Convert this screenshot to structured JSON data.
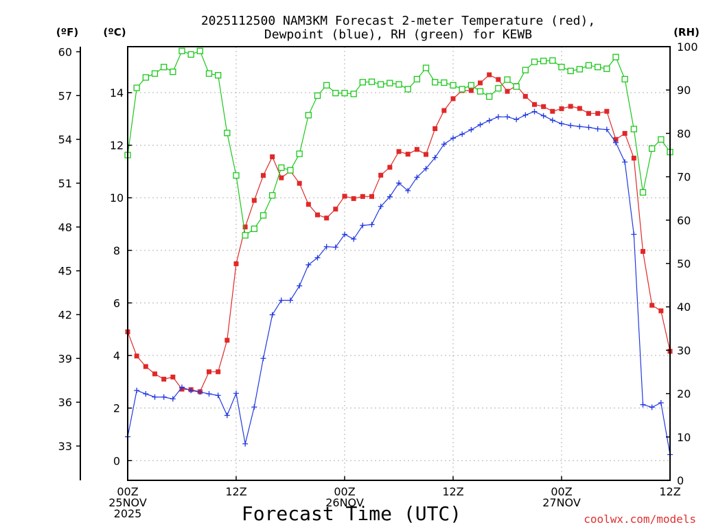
{
  "chart_data": {
    "type": "line",
    "title": [
      "2025112500 NAM3KM Forecast 2-meter Temperature (red),",
      "Dewpoint (blue), RH (green) for KEWB"
    ],
    "xlabel": "Forecast Time (UTC)",
    "credit": "coolwx.com/models",
    "units": {
      "fahrenheit": "(ºF)",
      "celsius": "(ºC)",
      "rh": "(RH)"
    },
    "x_hours_range": [
      0,
      60
    ],
    "celsius_range": [
      -0.75,
      15.75
    ],
    "rh_range": [
      0,
      100
    ],
    "x_ticks": [
      {
        "hour": 0,
        "lines": [
          "00Z",
          "25NOV",
          "2025"
        ]
      },
      {
        "hour": 12,
        "lines": [
          "12Z"
        ]
      },
      {
        "hour": 24,
        "lines": [
          "00Z",
          "26NOV"
        ]
      },
      {
        "hour": 36,
        "lines": [
          "12Z"
        ]
      },
      {
        "hour": 48,
        "lines": [
          "00Z",
          "27NOV"
        ]
      },
      {
        "hour": 60,
        "lines": [
          "12Z"
        ]
      }
    ],
    "celsius_ticks": [
      "0",
      "2",
      "4",
      "6",
      "8",
      "10",
      "12",
      "14"
    ],
    "fahrenheit_ticks": [
      "33",
      "36",
      "39",
      "42",
      "45",
      "48",
      "51",
      "54",
      "57",
      "60"
    ],
    "rh_ticks": [
      "0",
      "10",
      "20",
      "30",
      "40",
      "50",
      "60",
      "70",
      "80",
      "90",
      "100"
    ],
    "series": [
      {
        "name": "Temperature",
        "units": "°C",
        "color": "#e02828",
        "marker": "filled-square",
        "values": [
          4.9,
          3.98,
          3.58,
          3.3,
          3.1,
          3.18,
          2.72,
          2.7,
          2.62,
          3.38,
          3.38,
          4.58,
          7.49,
          8.89,
          9.9,
          10.85,
          11.56,
          10.76,
          11.02,
          10.55,
          9.75,
          9.35,
          9.23,
          9.57,
          10.06,
          9.97,
          10.05,
          10.05,
          10.86,
          11.16,
          11.76,
          11.66,
          11.84,
          11.65,
          12.63,
          13.32,
          13.77,
          14.08,
          14.08,
          14.37,
          14.68,
          14.5,
          14.05,
          14.27,
          13.86,
          13.55,
          13.47,
          13.29,
          13.39,
          13.48,
          13.4,
          13.21,
          13.21,
          13.29,
          12.22,
          12.45,
          11.51,
          7.96,
          5.91,
          5.7,
          4.16
        ]
      },
      {
        "name": "Dewpoint",
        "units": "°C",
        "color": "#2038e0",
        "marker": "plus",
        "values": [
          0.91,
          2.67,
          2.54,
          2.42,
          2.42,
          2.35,
          2.79,
          2.67,
          2.61,
          2.54,
          2.48,
          1.72,
          2.56,
          0.64,
          2.04,
          3.89,
          5.55,
          6.1,
          6.1,
          6.65,
          7.45,
          7.72,
          8.14,
          8.12,
          8.61,
          8.43,
          8.95,
          8.98,
          9.67,
          10.04,
          10.56,
          10.27,
          10.78,
          11.11,
          11.53,
          12.04,
          12.27,
          12.42,
          12.59,
          12.78,
          12.94,
          13.08,
          13.08,
          12.98,
          13.15,
          13.28,
          13.12,
          12.95,
          12.82,
          12.75,
          12.71,
          12.68,
          12.62,
          12.6,
          12.1,
          11.36,
          8.61,
          2.13,
          2.03,
          2.2,
          0.23
        ]
      },
      {
        "name": "RH",
        "units": "%",
        "color": "#18c818",
        "marker": "open-square",
        "values": [
          75.0,
          90.5,
          92.9,
          93.8,
          95.3,
          94.2,
          99.0,
          98.2,
          99.0,
          93.8,
          93.4,
          80.1,
          70.3,
          56.5,
          58.0,
          61.1,
          65.7,
          72.1,
          71.5,
          75.3,
          84.2,
          88.7,
          91.1,
          89.3,
          89.3,
          89.1,
          91.8,
          91.9,
          91.3,
          91.6,
          91.3,
          90.2,
          92.5,
          95.1,
          91.8,
          91.7,
          91.1,
          90.2,
          91.1,
          89.7,
          88.5,
          90.4,
          92.4,
          90.8,
          94.6,
          96.5,
          96.7,
          96.8,
          95.3,
          94.4,
          94.8,
          95.7,
          95.3,
          94.9,
          97.6,
          92.5,
          81.0,
          66.4,
          76.5,
          78.6,
          75.7
        ]
      }
    ]
  }
}
